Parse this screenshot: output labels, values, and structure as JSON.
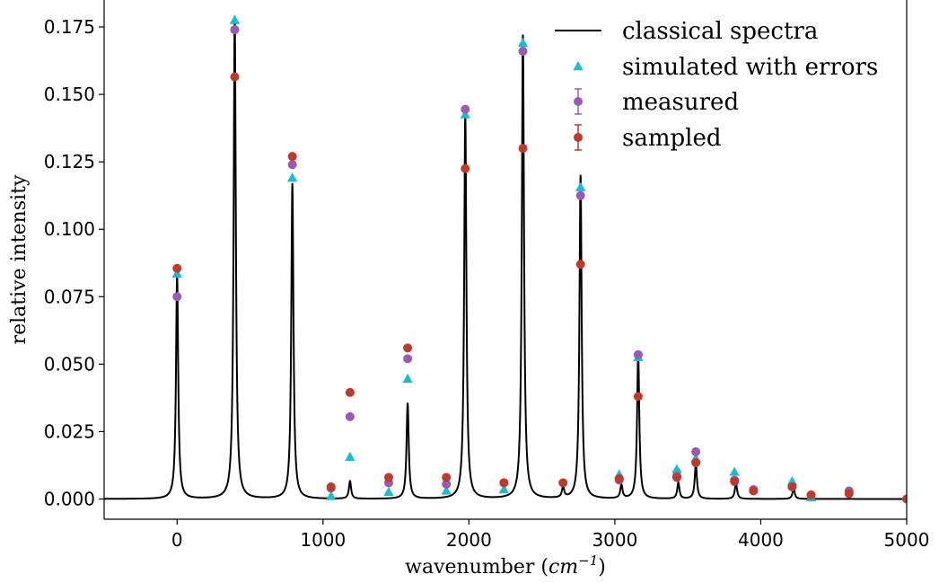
{
  "chart_data": {
    "type": "line",
    "title": "",
    "xlabel": "wavenumber (cm^-1)",
    "xlabel_parts": {
      "prefix": "wavenumber (",
      "var": "cm",
      "exp": "−1",
      "suffix": ")"
    },
    "ylabel": "relative intensity",
    "xlim": [
      -500,
      5000
    ],
    "ylim": [
      -0.0075,
      0.185
    ],
    "x_ticks": [
      0,
      1000,
      2000,
      3000,
      4000,
      5000
    ],
    "x_tick_labels": [
      "0",
      "1000",
      "2000",
      "3000",
      "4000",
      "5000"
    ],
    "y_ticks": [
      0.0,
      0.025,
      0.05,
      0.075,
      0.1,
      0.125,
      0.15,
      0.175
    ],
    "y_tick_labels": [
      "0.000",
      "0.025",
      "0.050",
      "0.075",
      "0.100",
      "0.125",
      "0.150",
      "0.175"
    ],
    "grid": false,
    "legend_position": "top-right",
    "classical_peaks": [
      {
        "x": 0,
        "height": 0.083
      },
      {
        "x": 395,
        "height": 0.179
      },
      {
        "x": 790,
        "height": 0.117
      },
      {
        "x": 1185,
        "height": 0.0065
      },
      {
        "x": 1580,
        "height": 0.0355
      },
      {
        "x": 1975,
        "height": 0.143
      },
      {
        "x": 2370,
        "height": 0.172
      },
      {
        "x": 2645,
        "height": 0.004
      },
      {
        "x": 2765,
        "height": 0.12
      },
      {
        "x": 3045,
        "height": 0.005
      },
      {
        "x": 3160,
        "height": 0.054
      },
      {
        "x": 3435,
        "height": 0.006
      },
      {
        "x": 3555,
        "height": 0.013
      },
      {
        "x": 3830,
        "height": 0.006
      },
      {
        "x": 4225,
        "height": 0.004
      }
    ],
    "series": [
      {
        "name": "classical spectra",
        "style": "line",
        "color": "#000000"
      },
      {
        "name": "simulated with errors",
        "style": "triangle",
        "color": "#17becf",
        "points": [
          [
            0,
            0.0835
          ],
          [
            395,
            0.1775
          ],
          [
            790,
            0.119
          ],
          [
            1055,
            0.001
          ],
          [
            1185,
            0.0155
          ],
          [
            1450,
            0.0025
          ],
          [
            1580,
            0.0445
          ],
          [
            1845,
            0.003
          ],
          [
            1975,
            0.1425
          ],
          [
            2240,
            0.0035
          ],
          [
            2370,
            0.169
          ],
          [
            2765,
            0.1155
          ],
          [
            3030,
            0.009
          ],
          [
            3160,
            0.0525
          ],
          [
            3425,
            0.011
          ],
          [
            3555,
            0.015
          ],
          [
            3820,
            0.01
          ],
          [
            4215,
            0.0065
          ],
          [
            4345,
            0.0005
          ]
        ]
      },
      {
        "name": "measured",
        "style": "circle-errorbar",
        "color": "#9b59b6",
        "points": [
          [
            0,
            0.075
          ],
          [
            395,
            0.174
          ],
          [
            790,
            0.124
          ],
          [
            1055,
            0.004
          ],
          [
            1185,
            0.0305
          ],
          [
            1450,
            0.006
          ],
          [
            1580,
            0.052
          ],
          [
            1845,
            0.0055
          ],
          [
            1975,
            0.1445
          ],
          [
            2240,
            0.006
          ],
          [
            2370,
            0.166
          ],
          [
            2765,
            0.1125
          ],
          [
            3030,
            0.007
          ],
          [
            3160,
            0.0535
          ],
          [
            3425,
            0.0085
          ],
          [
            3555,
            0.0175
          ],
          [
            3820,
            0.007
          ],
          [
            3950,
            0.0035
          ],
          [
            4215,
            0.0045
          ],
          [
            4345,
            0.0015
          ],
          [
            4605,
            0.003
          ]
        ]
      },
      {
        "name": "sampled",
        "style": "circle-errorbar",
        "color": "#c0392b",
        "points": [
          [
            0,
            0.0855
          ],
          [
            395,
            0.1565
          ],
          [
            790,
            0.127
          ],
          [
            1055,
            0.0045
          ],
          [
            1185,
            0.0395
          ],
          [
            1450,
            0.008
          ],
          [
            1580,
            0.056
          ],
          [
            1845,
            0.008
          ],
          [
            1975,
            0.1225
          ],
          [
            2240,
            0.006
          ],
          [
            2370,
            0.13
          ],
          [
            2645,
            0.006
          ],
          [
            2765,
            0.087
          ],
          [
            3030,
            0.0075
          ],
          [
            3160,
            0.038
          ],
          [
            3425,
            0.008
          ],
          [
            3555,
            0.0135
          ],
          [
            3820,
            0.0065
          ],
          [
            3950,
            0.003
          ],
          [
            4215,
            0.0045
          ],
          [
            4345,
            0.0015
          ],
          [
            4605,
            0.002
          ],
          [
            5000,
            0.0
          ]
        ]
      }
    ]
  }
}
